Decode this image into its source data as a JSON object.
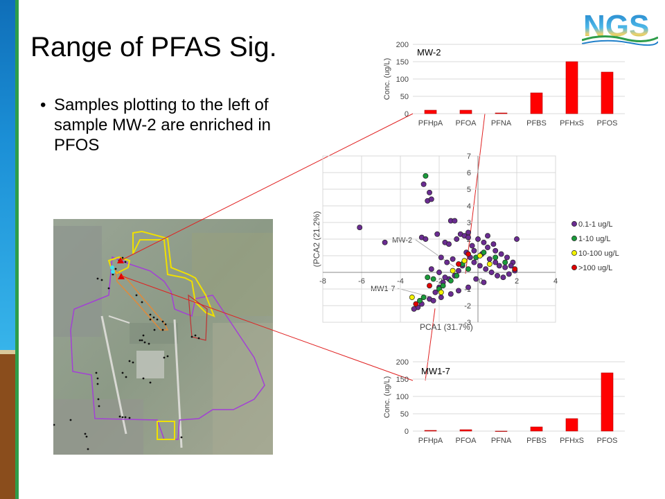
{
  "slide": {
    "title": "Range of PFAS Sig.",
    "bullet": "Samples plotting to the left of sample MW-2 are enriched in PFOS"
  },
  "logo": {
    "text": "NGS"
  },
  "colors": {
    "sidebar_blue": "#1b8fd6",
    "sidebar_green": "#2e9d4a",
    "sidebar_brown": "#8a4d1c",
    "bar_red": "#ff0000",
    "connector_red": "#e02020",
    "class1": "#6a2c91",
    "class2": "#1a9a3a",
    "class3": "#f2f200",
    "class4": "#e00000",
    "site_boundary": "#a040d0",
    "site_boundary_yellow": "#f0e000"
  },
  "chart_data": [
    {
      "type": "bar",
      "title": "MW-2",
      "categories": [
        "PFHpA",
        "PFOA",
        "PFNA",
        "PFBS",
        "PFHxS",
        "PFOS"
      ],
      "values": [
        10,
        10,
        2,
        60,
        150,
        120
      ],
      "ylabel": "Conc. (ug/L)",
      "ylim": [
        0,
        200
      ],
      "yticks": [
        0,
        50,
        100,
        150,
        200
      ],
      "grid": true
    },
    {
      "type": "scatter",
      "xlabel": "PCA1 (31.7%)",
      "ylabel": "(PCA2 (21.2%)",
      "xlim": [
        -8,
        4
      ],
      "ylim": [
        -3,
        7
      ],
      "xticks": [
        -8,
        -6,
        -4,
        -2,
        0,
        2,
        4
      ],
      "yticks": [
        -3,
        -2,
        -1,
        0,
        1,
        2,
        3,
        4,
        5,
        6,
        7
      ],
      "legend": [
        "0.1-1 ug/L",
        "1-10 ug/L",
        "10-100 ug/L",
        ">100 ug/L"
      ],
      "legend_placement": "right",
      "annotations": [
        "MW-2",
        "MW1-7"
      ],
      "series": [
        {
          "name": "0.1-1 ug/L",
          "points": [
            [
              -6.1,
              2.7
            ],
            [
              -4.8,
              1.8
            ],
            [
              -2.9,
              2.1
            ],
            [
              -2.7,
              2.0
            ],
            [
              -2.8,
              5.3
            ],
            [
              -2.5,
              4.8
            ],
            [
              -2.6,
              4.3
            ],
            [
              -2.4,
              4.4
            ],
            [
              -2.1,
              2.3
            ],
            [
              -1.7,
              1.8
            ],
            [
              -1.5,
              1.7
            ],
            [
              -1.4,
              3.1
            ],
            [
              -1.2,
              3.1
            ],
            [
              -1.1,
              2.0
            ],
            [
              -0.9,
              2.3
            ],
            [
              -0.7,
              2.2
            ],
            [
              -0.5,
              2.1
            ],
            [
              -0.3,
              1.6
            ],
            [
              0.0,
              2.0
            ],
            [
              0.3,
              1.8
            ],
            [
              0.5,
              1.5
            ],
            [
              0.9,
              1.3
            ],
            [
              1.2,
              1.1
            ],
            [
              1.5,
              0.9
            ],
            [
              2.0,
              2.0
            ],
            [
              1.8,
              0.6
            ],
            [
              1.9,
              0.1
            ],
            [
              -0.6,
              1.2
            ],
            [
              -0.4,
              0.9
            ],
            [
              -0.2,
              0.6
            ],
            [
              0.1,
              0.4
            ],
            [
              0.4,
              0.2
            ],
            [
              0.7,
              0.0
            ],
            [
              1.0,
              -0.2
            ],
            [
              1.3,
              -0.3
            ],
            [
              1.6,
              -0.1
            ],
            [
              -0.8,
              0.4
            ],
            [
              -1.0,
              0.1
            ],
            [
              -1.2,
              -0.2
            ],
            [
              -1.5,
              -0.4
            ],
            [
              -1.8,
              -0.6
            ],
            [
              -2.0,
              -0.9
            ],
            [
              -2.2,
              -1.2
            ],
            [
              -2.5,
              -1.6
            ],
            [
              -2.9,
              -1.9
            ],
            [
              -3.1,
              -2.1
            ],
            [
              -3.3,
              -2.2
            ],
            [
              -1.6,
              0.6
            ],
            [
              -1.3,
              0.8
            ],
            [
              -0.2,
              1.3
            ],
            [
              0.2,
              1.1
            ],
            [
              0.6,
              0.8
            ],
            [
              0.9,
              0.6
            ],
            [
              1.1,
              0.4
            ],
            [
              -0.1,
              -0.4
            ],
            [
              0.3,
              -0.6
            ],
            [
              -0.5,
              -0.9
            ],
            [
              -1.0,
              -1.1
            ],
            [
              -1.4,
              -1.3
            ],
            [
              -1.9,
              -1.5
            ],
            [
              -2.3,
              -1.7
            ],
            [
              0.8,
              1.7
            ],
            [
              0.5,
              2.2
            ],
            [
              -0.5,
              2.4
            ],
            [
              -2.0,
              0.0
            ],
            [
              -1.7,
              -0.3
            ],
            [
              1.4,
              0.3
            ],
            [
              1.7,
              0.4
            ],
            [
              -1.9,
              0.9
            ],
            [
              -2.4,
              0.2
            ]
          ]
        },
        {
          "name": "1-10 ug/L",
          "points": [
            [
              -2.7,
              5.8
            ],
            [
              -2.6,
              -0.3
            ],
            [
              -2.3,
              -0.4
            ],
            [
              -2.0,
              -1.0
            ],
            [
              -1.8,
              -0.8
            ],
            [
              -1.4,
              -0.5
            ],
            [
              -1.1,
              -0.2
            ],
            [
              -0.8,
              0.5
            ],
            [
              -0.5,
              0.2
            ],
            [
              -0.1,
              0.9
            ],
            [
              0.3,
              1.2
            ],
            [
              0.9,
              0.9
            ],
            [
              1.4,
              0.6
            ],
            [
              -2.8,
              -1.5
            ],
            [
              -3.0,
              -1.7
            ]
          ]
        },
        {
          "name": "10-100 ug/L",
          "points": [
            [
              -3.4,
              -1.5
            ],
            [
              -1.3,
              0.1
            ],
            [
              -0.7,
              0.7
            ],
            [
              0.1,
              1.0
            ],
            [
              0.6,
              0.5
            ],
            [
              -1.9,
              -1.2
            ]
          ]
        },
        {
          "name": ">100 ug/L",
          "points": [
            [
              -3.2,
              -1.9
            ],
            [
              -2.5,
              -0.8
            ],
            [
              -1.0,
              0.5
            ],
            [
              -0.5,
              1.1
            ],
            [
              1.9,
              0.2
            ]
          ]
        }
      ]
    },
    {
      "type": "bar",
      "title": "MW1-7",
      "categories": [
        "PFHpA",
        "PFOA",
        "PFNA",
        "PFBS",
        "PFHxS",
        "PFOS"
      ],
      "values": [
        2,
        4,
        0,
        12,
        36,
        168
      ],
      "ylabel": "Conc. (ug/L)",
      "ylim": [
        0,
        200
      ],
      "yticks": [
        0,
        50,
        100,
        150,
        200
      ],
      "grid": true
    }
  ],
  "map": {
    "description_markers": "sample locations"
  }
}
